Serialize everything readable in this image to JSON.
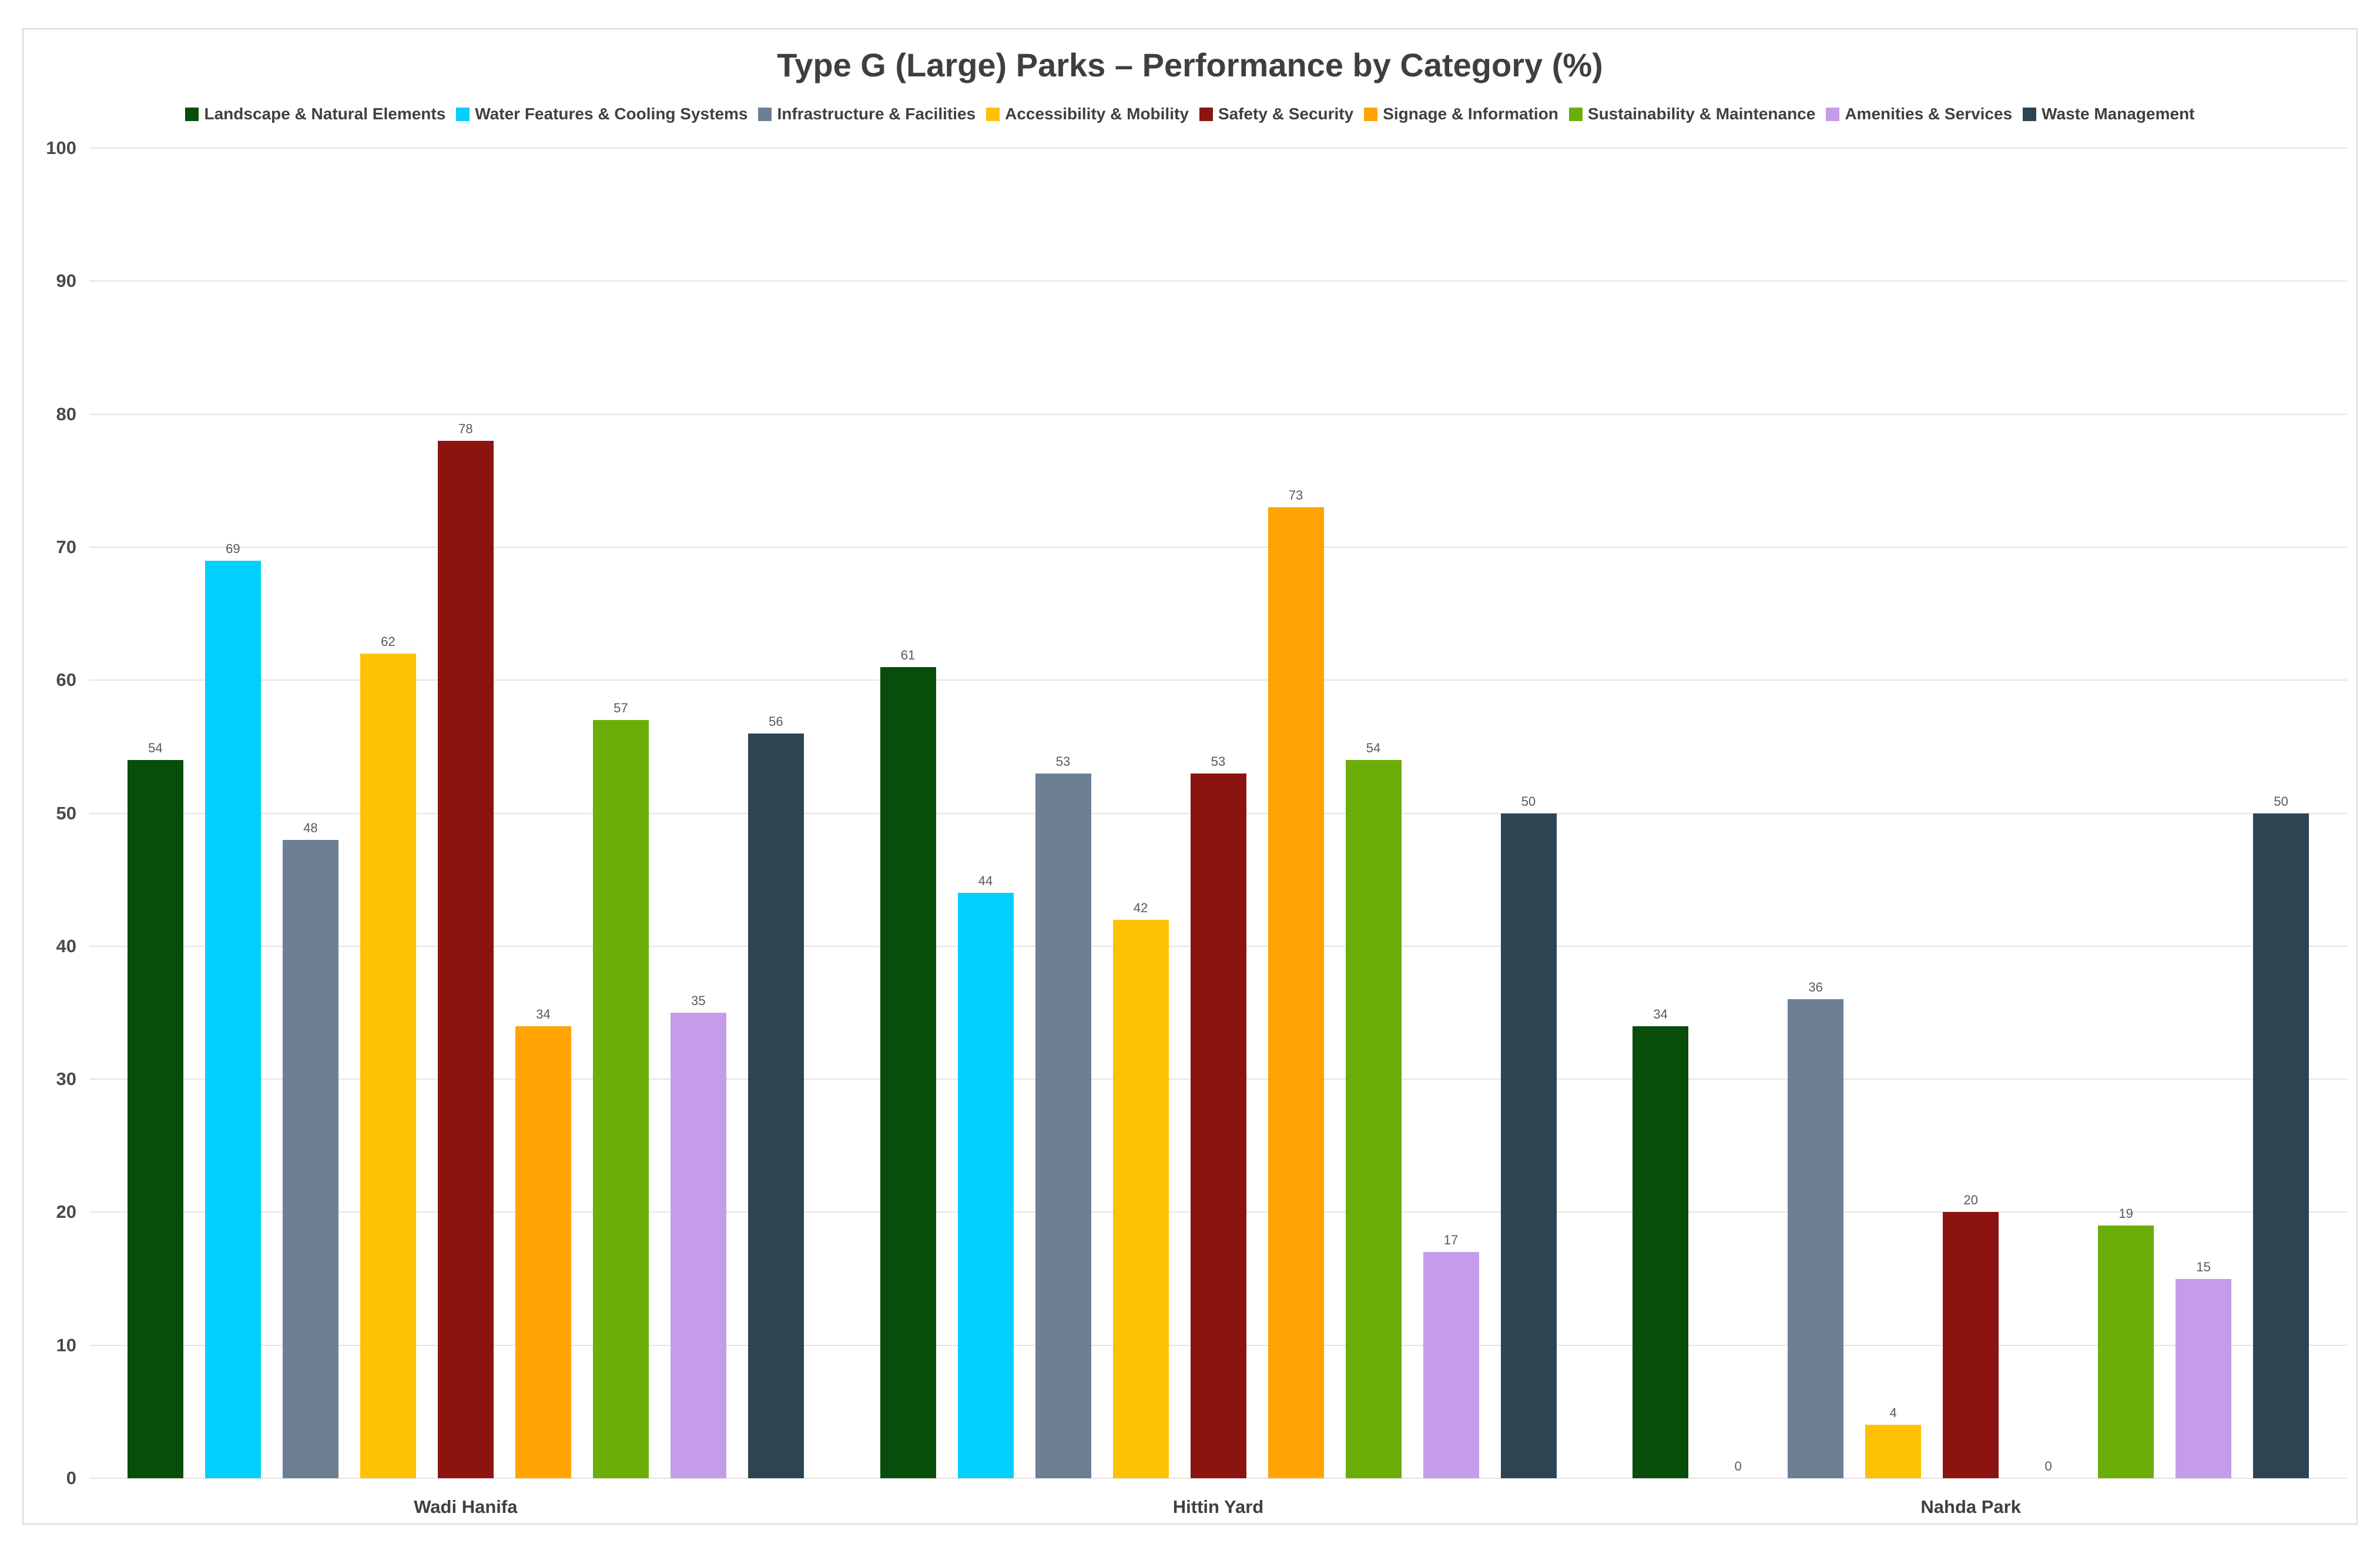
{
  "chart_data": {
    "type": "bar",
    "title": "Type G (Large) Parks – Performance by Category (%)",
    "categories": [
      "Wadi Hanifa",
      "Hittin Yard",
      "Nahda Park"
    ],
    "series": [
      {
        "name": "Landscape & Natural Elements",
        "color": "#084d0a",
        "values": [
          54,
          61,
          34
        ]
      },
      {
        "name": "Water Features & Cooling Systems",
        "color": "#00d0fb",
        "values": [
          69,
          44,
          0
        ]
      },
      {
        "name": "Infrastructure & Facilities",
        "color": "#6d8093",
        "values": [
          48,
          53,
          36
        ]
      },
      {
        "name": "Accessibility & Mobility",
        "color": "#ffc103",
        "values": [
          62,
          42,
          4
        ]
      },
      {
        "name": "Safety & Security",
        "color": "#8b1410",
        "values": [
          78,
          53,
          20
        ]
      },
      {
        "name": "Signage & Information",
        "color": "#ffa402",
        "values": [
          34,
          73,
          0
        ]
      },
      {
        "name": "Sustainability & Maintenance",
        "color": "#6bae08",
        "values": [
          57,
          54,
          19
        ]
      },
      {
        "name": "Amenities & Services",
        "color": "#c59ce9",
        "values": [
          35,
          17,
          15
        ]
      },
      {
        "name": "Waste Management",
        "color": "#2e4452",
        "values": [
          56,
          50,
          50
        ]
      }
    ],
    "ylim": [
      0,
      100
    ],
    "yticks": [
      0,
      10,
      20,
      30,
      40,
      50,
      60,
      70,
      80,
      90,
      100
    ],
    "grid": true,
    "legend_position": "top",
    "value_labels": true
  }
}
